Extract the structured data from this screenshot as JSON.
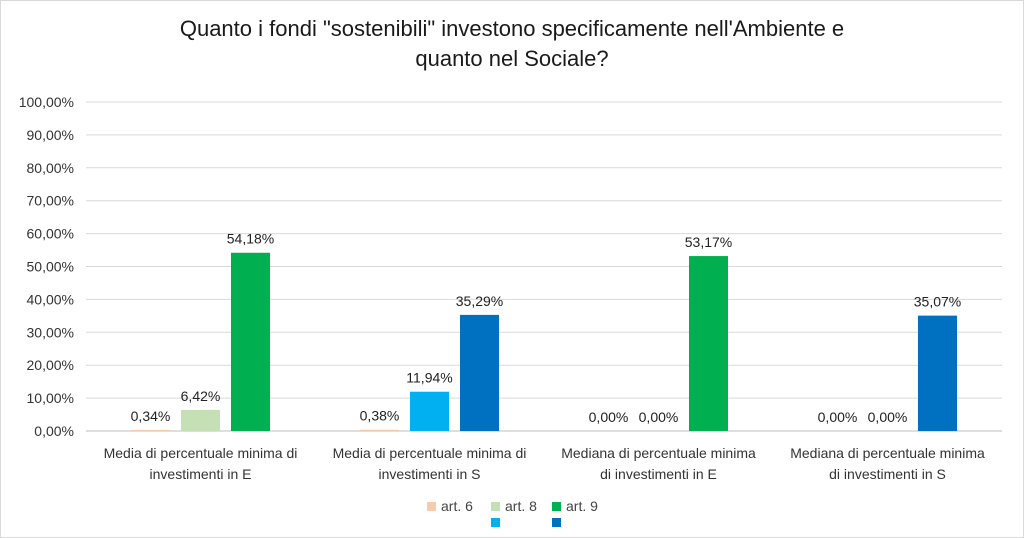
{
  "chart_data": {
    "type": "bar",
    "title_lines": [
      "Quanto i fondi \"sostenibili\" investono specificamente nell'Ambiente e",
      "quanto nel Sociale?"
    ],
    "xlabel": "",
    "ylabel": "",
    "ylim": [
      0,
      100
    ],
    "y_ticks": [
      "0,00%",
      "10,00%",
      "20,00%",
      "30,00%",
      "40,00%",
      "50,00%",
      "60,00%",
      "70,00%",
      "80,00%",
      "90,00%",
      "100,00%"
    ],
    "grid": true,
    "legend_position": "bottom",
    "categories": [
      [
        "Media di percentuale minima di",
        "investimenti in E"
      ],
      [
        "Media di percentuale minima di",
        "investimenti in S"
      ],
      [
        "Mediana di percentuale minima",
        "di investimenti in E"
      ],
      [
        "Mediana di percentuale minima",
        "di investimenti in S"
      ]
    ],
    "groups": [
      {
        "bars": [
          {
            "value": 0.34,
            "label": "0,34%",
            "color": "#F8CBAD"
          },
          {
            "value": 6.42,
            "label": "6,42%",
            "color": "#C5E0B4"
          },
          {
            "value": 54.18,
            "label": "54,18%",
            "color": "#00B050"
          }
        ]
      },
      {
        "bars": [
          {
            "value": 0.38,
            "label": "0,38%",
            "color": "#F8CBAD"
          },
          {
            "value": 11.94,
            "label": "11,94%",
            "color": "#00B0F0"
          },
          {
            "value": 35.29,
            "label": "35,29%",
            "color": "#0070C0"
          }
        ]
      },
      {
        "bars": [
          {
            "value": 0.0,
            "label": "0,00%",
            "color": "#F8CBAD"
          },
          {
            "value": 0.0,
            "label": "0,00%",
            "color": "#C5E0B4"
          },
          {
            "value": 53.17,
            "label": "53,17%",
            "color": "#00B050"
          }
        ]
      },
      {
        "bars": [
          {
            "value": 0.0,
            "label": "0,00%",
            "color": "#F8CBAD"
          },
          {
            "value": 0.0,
            "label": "0,00%",
            "color": "#00B0F0"
          },
          {
            "value": 35.07,
            "label": "35,07%",
            "color": "#0070C0"
          }
        ]
      }
    ],
    "legend": [
      {
        "name": "art. 6",
        "color": "#F8CBAD"
      },
      {
        "name": "art. 8",
        "color": "#C5E0B4"
      },
      {
        "name": "art. 9",
        "color": "#00B050"
      },
      {
        "name": "",
        "color": "#00B0F0"
      },
      {
        "name": "",
        "color": "#0070C0"
      }
    ],
    "colors": {
      "gridline": "#d9d9d9",
      "axis": "#bfbfbf"
    }
  }
}
